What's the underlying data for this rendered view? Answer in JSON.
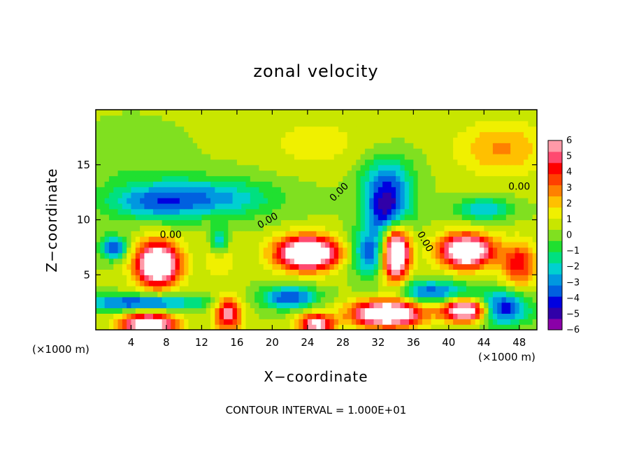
{
  "chart_data": {
    "type": "heatmap",
    "title": "zonal velocity",
    "xlabel": "X−coordinate",
    "ylabel": "Z−coordinate",
    "x_unit_left": "(×1000 m)",
    "x_unit_right": "(×1000 m)",
    "footer": "CONTOUR INTERVAL = 1.000E+01",
    "xlim": [
      0,
      50
    ],
    "ylim": [
      0,
      20
    ],
    "x_ticks": [
      4,
      8,
      12,
      16,
      20,
      24,
      28,
      32,
      36,
      40,
      44,
      48
    ],
    "y_ticks": [
      5,
      10,
      15
    ],
    "colorbar": {
      "range": [
        -6,
        6
      ],
      "tick_values": [
        6,
        5,
        4,
        3,
        2,
        1,
        0,
        -1,
        -2,
        -3,
        -4,
        -5,
        -6
      ],
      "tick_labels": [
        "6",
        "5",
        "4",
        "3",
        "2",
        "1",
        "0",
        "−1",
        "−2",
        "−3",
        "−4",
        "−5",
        "−6"
      ],
      "colors": [
        "#8a00a8",
        "#3000a8",
        "#0000e0",
        "#0060e0",
        "#0098e0",
        "#00d0d0",
        "#00e080",
        "#20e030",
        "#80e020",
        "#c8e600",
        "#f0f000",
        "#ffc000",
        "#ff8000",
        "#ff4000",
        "#ff0000",
        "#ff4a70",
        "#ff9aa8"
      ],
      "out_of_range_high": "#ffffff"
    },
    "background_value": 0.4,
    "contour_labels": [
      {
        "text": "0.00",
        "x": 8.5,
        "y": 8.6
      },
      {
        "text": "0.00",
        "x": 19.5,
        "y": 9.9,
        "angle": -30
      },
      {
        "text": "0.00",
        "x": 27.6,
        "y": 12.5,
        "angle": -45
      },
      {
        "text": "0.00",
        "x": 37.3,
        "y": 8.0,
        "angle": 60
      },
      {
        "text": "0.00",
        "x": 48.0,
        "y": 13.0
      }
    ],
    "features": [
      {
        "x": 25,
        "y": 17,
        "sx": 6,
        "sy": 2.5,
        "amp": 1.0
      },
      {
        "x": 46,
        "y": 16.5,
        "sx": 5,
        "sy": 2.5,
        "amp": 2.2
      },
      {
        "x": 4,
        "y": 15,
        "sx": 5,
        "sy": 3,
        "amp": -0.6
      },
      {
        "x": 12,
        "y": 12,
        "sx": 8,
        "sy": 1.8,
        "amp": -3.4
      },
      {
        "x": 6,
        "y": 11.5,
        "sx": 5,
        "sy": 1.5,
        "amp": -2.0
      },
      {
        "x": 33,
        "y": 11,
        "sx": 2.5,
        "sy": 2.5,
        "amp": -5.5
      },
      {
        "x": 33,
        "y": 14,
        "sx": 3,
        "sy": 2,
        "amp": -2.5
      },
      {
        "x": 44,
        "y": 11,
        "sx": 3,
        "sy": 1,
        "amp": -3.0
      },
      {
        "x": 2,
        "y": 7.5,
        "sx": 1.5,
        "sy": 1,
        "amp": -4.5
      },
      {
        "x": 7,
        "y": 6,
        "sx": 2.5,
        "sy": 2,
        "amp": 8.5
      },
      {
        "x": 14,
        "y": 8,
        "sx": 1.2,
        "sy": 1.5,
        "amp": -6.0
      },
      {
        "x": 14,
        "y": 7.5,
        "sx": 1.5,
        "sy": 2,
        "amp": 4.0
      },
      {
        "x": 24,
        "y": 7,
        "sx": 3.5,
        "sy": 1.5,
        "amp": 9.0
      },
      {
        "x": 31,
        "y": 7,
        "sx": 2,
        "sy": 2,
        "amp": -4.0
      },
      {
        "x": 34,
        "y": 7,
        "sx": 1.5,
        "sy": 2.5,
        "amp": 9.0
      },
      {
        "x": 42,
        "y": 7.2,
        "sx": 3,
        "sy": 1.5,
        "amp": 8.5
      },
      {
        "x": 48,
        "y": 6,
        "sx": 2,
        "sy": 2,
        "amp": 4.0
      },
      {
        "x": 15,
        "y": 1.5,
        "sx": 1.5,
        "sy": 1.5,
        "amp": 5.5
      },
      {
        "x": 6,
        "y": 0.5,
        "sx": 3,
        "sy": 1,
        "amp": 8.0
      },
      {
        "x": 25,
        "y": 0.5,
        "sx": 2,
        "sy": 1,
        "amp": 6.0
      },
      {
        "x": 33,
        "y": 1.5,
        "sx": 4,
        "sy": 1.2,
        "amp": 8.5
      },
      {
        "x": 42,
        "y": 1.8,
        "sx": 2.5,
        "sy": 1,
        "amp": 8.0
      },
      {
        "x": 5,
        "y": 2.5,
        "sx": 7,
        "sy": 0.7,
        "amp": -4.5
      },
      {
        "x": 22,
        "y": 3,
        "sx": 3,
        "sy": 1,
        "amp": -4.5
      },
      {
        "x": 38,
        "y": 3.5,
        "sx": 4,
        "sy": 1,
        "amp": -4.0
      },
      {
        "x": 46,
        "y": 2,
        "sx": 3,
        "sy": 1.5,
        "amp": -5.0
      }
    ]
  }
}
